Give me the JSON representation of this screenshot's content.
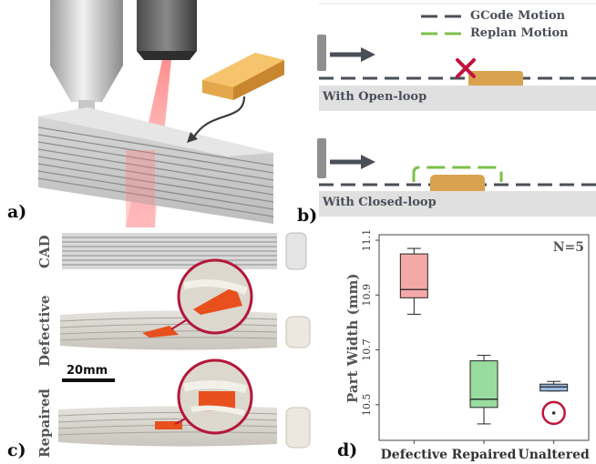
{
  "panels": {
    "a": "a)",
    "b": "b)",
    "c": "c)",
    "d": "d)"
  },
  "panel_b": {
    "legend": [
      {
        "label": "GCode Motion",
        "color": "#4a4f57"
      },
      {
        "label": "Replan Motion",
        "color": "#7cc04a"
      }
    ],
    "open_loop_label": "With Open-loop",
    "closed_loop_label": "With Closed-loop",
    "fail_mark_color": "#c0143c"
  },
  "panel_c": {
    "rows": [
      "CAD",
      "Defective",
      "Repaired"
    ],
    "scale_bar": "20mm",
    "defect_color": "#e8501e",
    "highlight_color": "#b3173a"
  },
  "chart_data": {
    "type": "box",
    "ylabel": "Part Width (mm)",
    "yticks": [
      10.5,
      10.7,
      10.9,
      11.1
    ],
    "ylim": [
      10.37,
      11.12
    ],
    "annotation": "N=5",
    "categories": [
      "Defective",
      "Repaired",
      "Unaltered"
    ],
    "boxes": [
      {
        "category": "Defective",
        "whisker_low": 10.83,
        "q1": 10.89,
        "median": 10.92,
        "q3": 11.05,
        "whisker_high": 11.07,
        "color": "#f4a9a8"
      },
      {
        "category": "Repaired",
        "whisker_low": 10.43,
        "q1": 10.49,
        "median": 10.52,
        "q3": 10.66,
        "whisker_high": 10.68,
        "color": "#98dca0"
      },
      {
        "category": "Unaltered",
        "whisker_low": 10.55,
        "q1": 10.55,
        "median": 10.565,
        "q3": 10.575,
        "whisker_high": 10.585,
        "color": "#9ab9dd",
        "outliers": [
          10.47
        ]
      }
    ],
    "outlier_highlight_color": "#c0143c"
  }
}
